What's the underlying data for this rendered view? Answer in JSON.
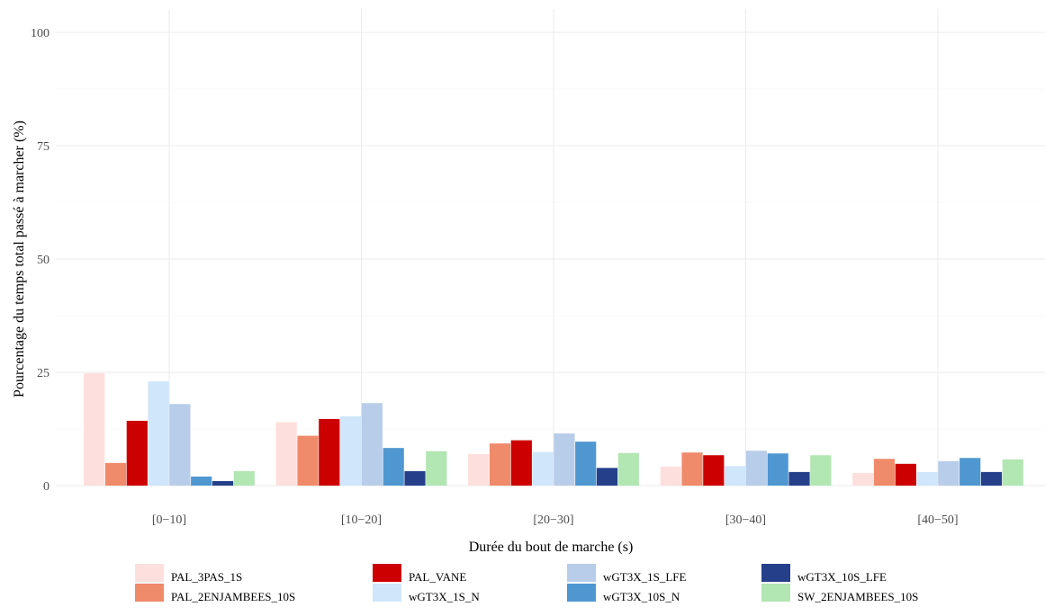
{
  "chart_data": {
    "type": "bar",
    "title": "",
    "xlabel": "Durée du bout de marche (s)",
    "ylabel": "Pourcentage du temps total passé à marcher (%)",
    "ylim": [
      0,
      100
    ],
    "yticks": [
      0,
      25,
      50,
      75,
      100
    ],
    "grid": true,
    "legend_position": "bottom",
    "categories": [
      "[0−10]",
      "[10−20]",
      "[20−30]",
      "[30−40]",
      "[40−50]"
    ],
    "series": [
      {
        "name": "PAL_3PAS_1S",
        "color": "#fde0dd",
        "values": [
          24.8,
          14.0,
          7.0,
          4.2,
          2.8
        ]
      },
      {
        "name": "PAL_2ENJAMBEES_10S",
        "color": "#ef8a6a",
        "values": [
          5.0,
          11.0,
          9.3,
          7.3,
          5.9
        ]
      },
      {
        "name": "PAL_VANE",
        "color": "#cc0000",
        "values": [
          14.3,
          14.7,
          10.0,
          6.7,
          4.8
        ]
      },
      {
        "name": "wGT3X_1S_N",
        "color": "#cfe6fb",
        "values": [
          23.0,
          15.3,
          7.4,
          4.3,
          3.0
        ]
      },
      {
        "name": "wGT3X_1S_LFE",
        "color": "#b8cde9",
        "values": [
          18.0,
          18.2,
          11.5,
          7.7,
          5.4
        ]
      },
      {
        "name": "wGT3X_10S_N",
        "color": "#4f97d1",
        "values": [
          2.0,
          8.3,
          9.7,
          7.1,
          6.1
        ]
      },
      {
        "name": "wGT3X_10S_LFE",
        "color": "#253f8a",
        "values": [
          1.0,
          3.2,
          3.9,
          3.0,
          3.0
        ]
      },
      {
        "name": "SW_2ENJAMBEES_10S",
        "color": "#b2e6b2",
        "values": [
          3.2,
          7.6,
          7.2,
          6.7,
          5.8
        ]
      }
    ]
  }
}
